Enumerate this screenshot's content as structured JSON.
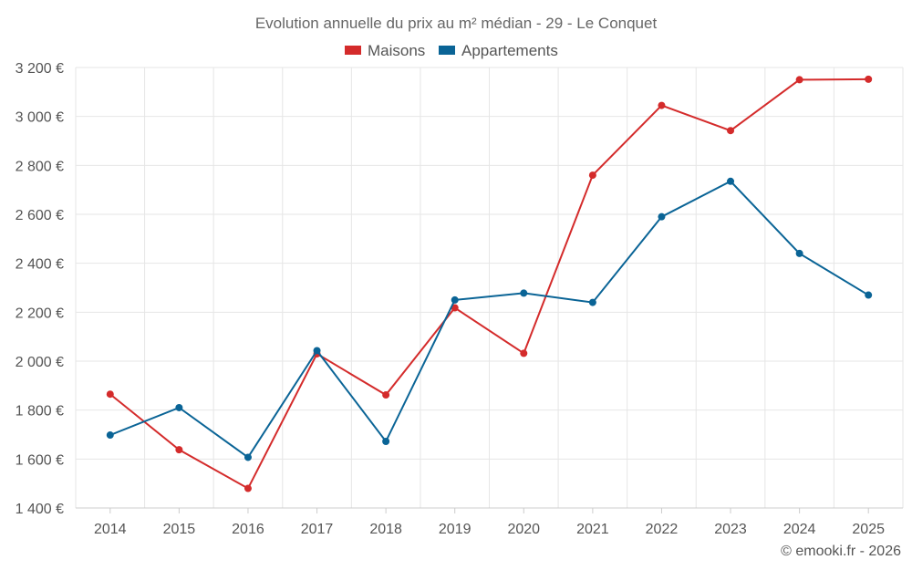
{
  "chart_data": {
    "type": "line",
    "title": "Evolution annuelle du prix au m² médian - 29 - Le Conquet",
    "categories": [
      "2014",
      "2015",
      "2016",
      "2017",
      "2018",
      "2019",
      "2020",
      "2021",
      "2022",
      "2023",
      "2024",
      "2025"
    ],
    "series": [
      {
        "name": "Maisons",
        "color": "#d42b2b",
        "values": [
          1865,
          1638,
          1480,
          2030,
          1862,
          2218,
          2032,
          2760,
          3045,
          2942,
          3150,
          3152
        ]
      },
      {
        "name": "Appartements",
        "color": "#0a6496",
        "values": [
          1698,
          1810,
          1607,
          2043,
          1672,
          2250,
          2278,
          2240,
          2590,
          2735,
          2440,
          2270
        ]
      }
    ],
    "ylim": [
      1400,
      3200
    ],
    "y_ticks": [
      1400,
      1600,
      1800,
      2000,
      2200,
      2400,
      2600,
      2800,
      3000,
      3200
    ],
    "y_tick_labels": [
      "1 400 €",
      "1 600 €",
      "1 800 €",
      "2 000 €",
      "2 200 €",
      "2 400 €",
      "2 600 €",
      "2 800 €",
      "3 000 €",
      "3 200 €"
    ],
    "xlabel": "",
    "ylabel": "",
    "grid": true,
    "legend_position": "top-center"
  },
  "credit": "© emooki.fr - 2026"
}
